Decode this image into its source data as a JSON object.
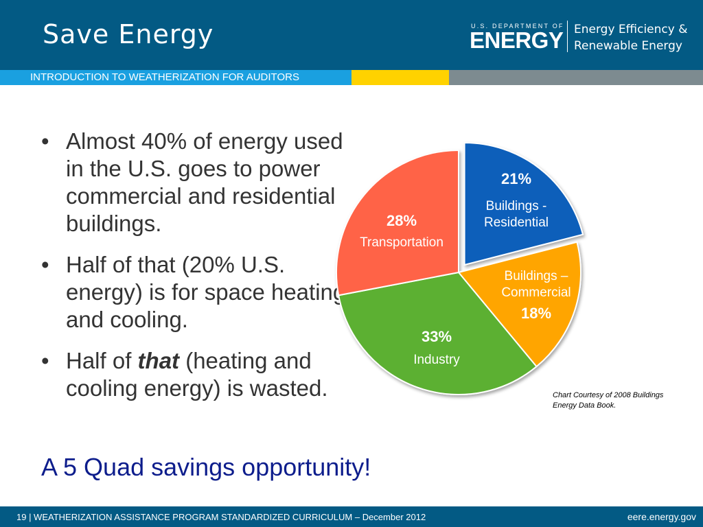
{
  "header": {
    "title": "Save Energy",
    "doe_small": "U.S. DEPARTMENT OF",
    "doe_big": "ENERGY",
    "eere_line1": "Energy Efficiency &",
    "eere_line2": "Renewable Energy",
    "subtitle": "INTRODUCTION TO WEATHERIZATION FOR AUDITORS"
  },
  "bullets": [
    "Almost 40% of energy used in the U.S. goes to power commercial and residential buildings.",
    "Half of that (20% U.S. energy) is for space heating and cooling."
  ],
  "bullet3": {
    "before": "Half of ",
    "emph": "that",
    "after": " (heating and cooling energy) is wasted."
  },
  "bullet_symbol": "•",
  "savings": "A 5 Quad savings opportunity!",
  "credit_line1": "Chart Courtesy of 2008 Buildings",
  "credit_line2": "Energy Data Book.",
  "footer": {
    "left": "19 | WEATHERIZATION ASSISTANCE PROGRAM STANDARDIZED CURRICULUM – December 2012",
    "right": "eere.energy.gov"
  },
  "colors": {
    "header": "#035a84",
    "residential": "#0f5fba",
    "commercial": "#ffa500",
    "industry": "#5cb030",
    "transportation": "#ff6347"
  },
  "chart_data": {
    "type": "pie",
    "title": "",
    "slices": [
      {
        "name": "Buildings - Residential",
        "line1": "Buildings -",
        "line2": "Residential",
        "pct": "21%",
        "value": 21,
        "color": "#0f5fba",
        "exploded": true
      },
      {
        "name": "Buildings – Commercial",
        "line1": "Buildings –",
        "line2": "Commercial",
        "pct": "18%",
        "value": 18,
        "color": "#ffa500",
        "exploded": false
      },
      {
        "name": "Industry",
        "line1": "Industry",
        "line2": "",
        "pct": "33%",
        "value": 33,
        "color": "#5cb030",
        "exploded": false
      },
      {
        "name": "Transportation",
        "line1": "Transportation",
        "line2": "",
        "pct": "28%",
        "value": 28,
        "color": "#ff6347",
        "exploded": false
      }
    ]
  }
}
